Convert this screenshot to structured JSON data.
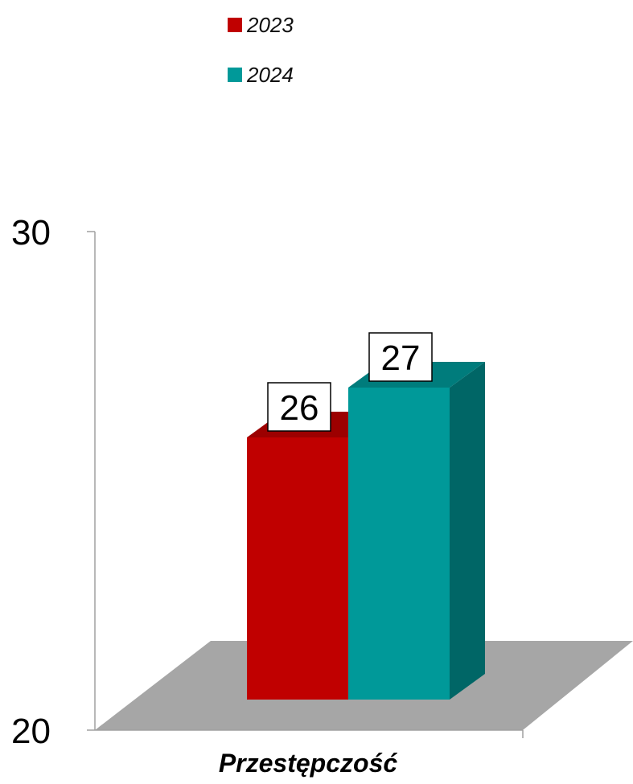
{
  "chart_data": {
    "type": "bar",
    "categories": [
      "Przestępczość"
    ],
    "series": [
      {
        "name": "2023",
        "values": [
          26
        ],
        "color": "#C00000",
        "side_color": "#8E0000",
        "top_color": "#9C0000"
      },
      {
        "name": "2024",
        "values": [
          27
        ],
        "color": "#009999",
        "side_color": "#006666",
        "top_color": "#007C7C"
      }
    ],
    "ylim": [
      20,
      30
    ],
    "y_ticks": [
      "30",
      "20"
    ],
    "floor_color": "#A6A6A6",
    "legend": "top",
    "style": "3d"
  }
}
